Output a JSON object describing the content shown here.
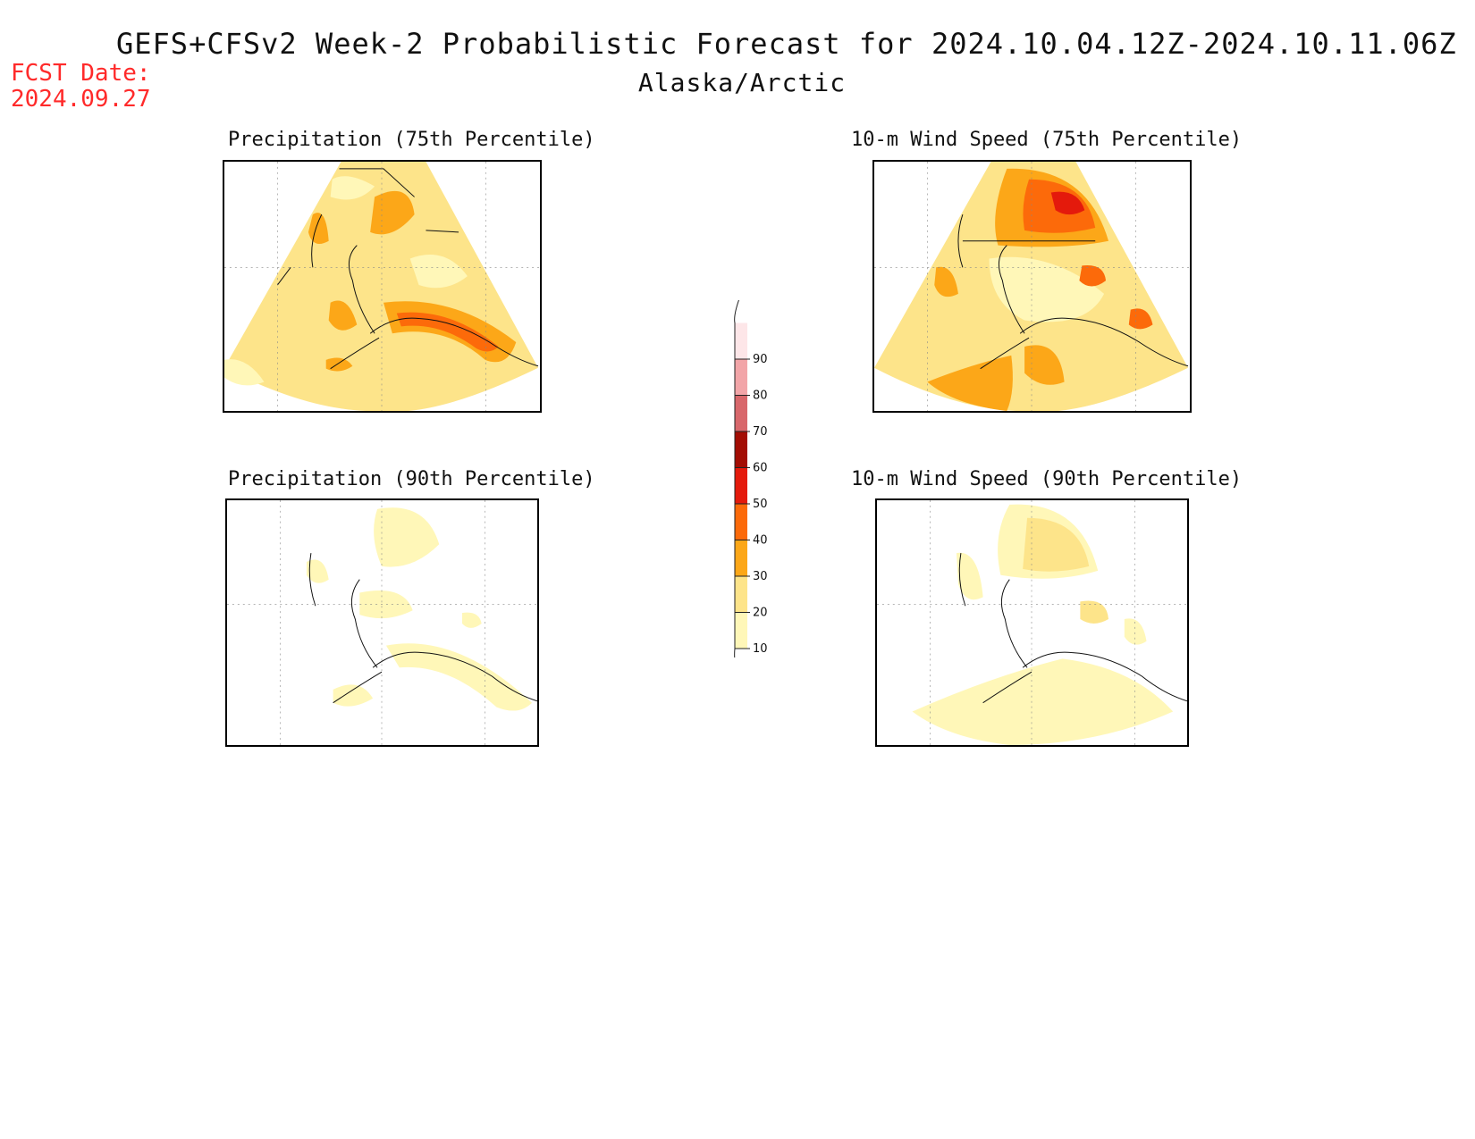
{
  "header": {
    "title": "GEFS+CFSv2 Week-2 Probabilistic Forecast for 2024.10.04.12Z-2024.10.11.06Z",
    "subtitle": "Alaska/Arctic",
    "fcst_label": "FCST Date:",
    "fcst_date": "2024.09.27"
  },
  "panels": [
    {
      "id": "precip75",
      "title": "Precipitation (75th Percentile)",
      "base_color": "#fde48a",
      "variable": "precipitation",
      "percentile": 75
    },
    {
      "id": "wind75",
      "title": "10-m Wind Speed (75th Percentile)",
      "base_color": "#fde48a",
      "variable": "wind speed",
      "percentile": 75
    },
    {
      "id": "precip90",
      "title": "Precipitation (90th Percentile)",
      "base_color": "#ffffff",
      "variable": "precipitation",
      "percentile": 90
    },
    {
      "id": "wind90",
      "title": "10-m Wind Speed (90th Percentile)",
      "base_color": "#ffffff",
      "variable": "wind speed",
      "percentile": 90
    }
  ],
  "colorbar": {
    "levels": [
      {
        "label": "10",
        "color": "#fff7b8"
      },
      {
        "label": "20",
        "color": "#fde48a"
      },
      {
        "label": "30",
        "color": "#fca718"
      },
      {
        "label": "40",
        "color": "#fc6a0a"
      },
      {
        "label": "50",
        "color": "#e41a0c"
      },
      {
        "label": "60",
        "color": "#a30d04"
      },
      {
        "label": "70",
        "color": "#d8676b"
      },
      {
        "label": "80",
        "color": "#f2a5a8"
      },
      {
        "label": "90",
        "color": "#fde6e8"
      }
    ]
  }
}
